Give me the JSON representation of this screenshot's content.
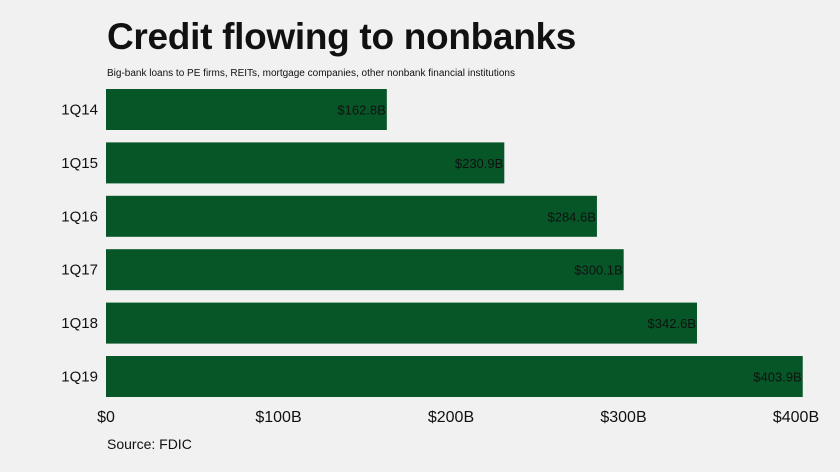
{
  "title": "Credit flowing to nonbanks",
  "subtitle": "Big-bank loans to PE firms, REITs, mortgage companies, other nonbank financial institutions",
  "source": "Source: FDIC",
  "colors": {
    "bar": "#065628",
    "background": "#f0f1f0",
    "text": "#111111"
  },
  "chart_data": {
    "type": "bar",
    "orientation": "horizontal",
    "categories": [
      "1Q14",
      "1Q15",
      "1Q16",
      "1Q17",
      "1Q18",
      "1Q19"
    ],
    "values": [
      162.8,
      230.9,
      284.6,
      300.1,
      342.6,
      403.9
    ],
    "value_labels": [
      "$162.8B",
      "$230.9B",
      "$284.6B",
      "$300.1B",
      "$342.6B",
      "$403.9B"
    ],
    "xlim": [
      0,
      400
    ],
    "ticks": [
      0,
      100,
      200,
      300,
      400
    ],
    "tick_labels": [
      "$0",
      "$100B",
      "$200B",
      "$300B",
      "$400B"
    ],
    "grid": false,
    "legend": "none"
  }
}
